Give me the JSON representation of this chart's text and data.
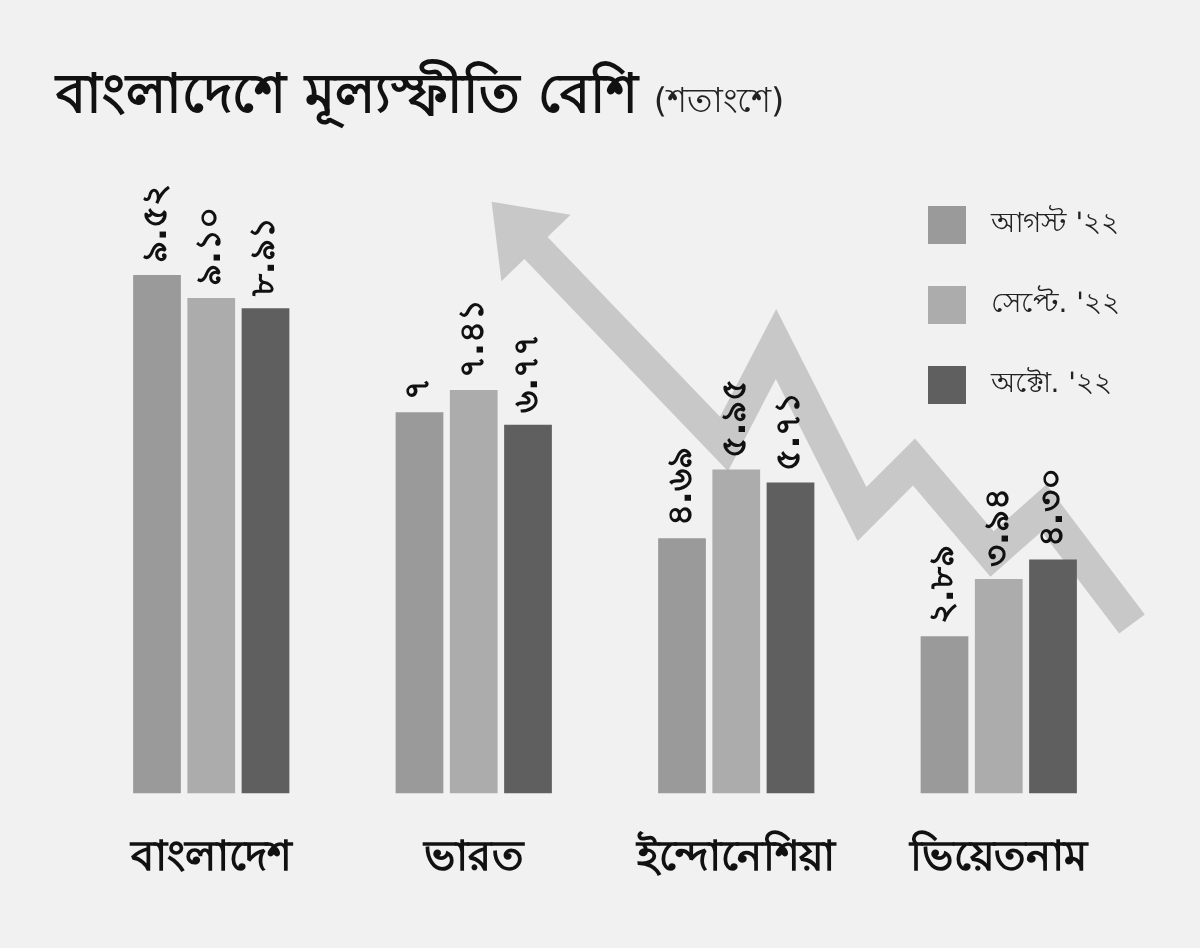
{
  "chart_data": {
    "type": "bar",
    "title": "বাংলাদেশে মূল্যস্ফীতি বেশি",
    "subtitle": "(শতাংশে)",
    "categories": [
      "বাংলাদেশ",
      "ভারত",
      "ইন্দোনেশিয়া",
      "ভিয়েতনাম"
    ],
    "legend": "top right",
    "series": [
      {
        "name": "আগস্ট '২২",
        "color": "#9a9a9a",
        "values": [
          9.52,
          7,
          4.69,
          2.89
        ],
        "value_labels": [
          "৯.৫২",
          "৭",
          "৪.৬৯",
          "২.৮৯"
        ]
      },
      {
        "name": "সেপ্টে. '২২",
        "color": "#acacac",
        "values": [
          9.1,
          7.41,
          5.95,
          3.94
        ],
        "value_labels": [
          "৯.১০",
          "৭.৪১",
          "৫.৯৫",
          "৩.৯৪"
        ]
      },
      {
        "name": "অক্টো. '২২",
        "color": "#5f5f5f",
        "values": [
          8.91,
          6.77,
          5.71,
          4.3
        ],
        "value_labels": [
          "৮.৯১",
          "৬.৭৭",
          "৫.৭১",
          "৪.৩০"
        ]
      }
    ]
  }
}
